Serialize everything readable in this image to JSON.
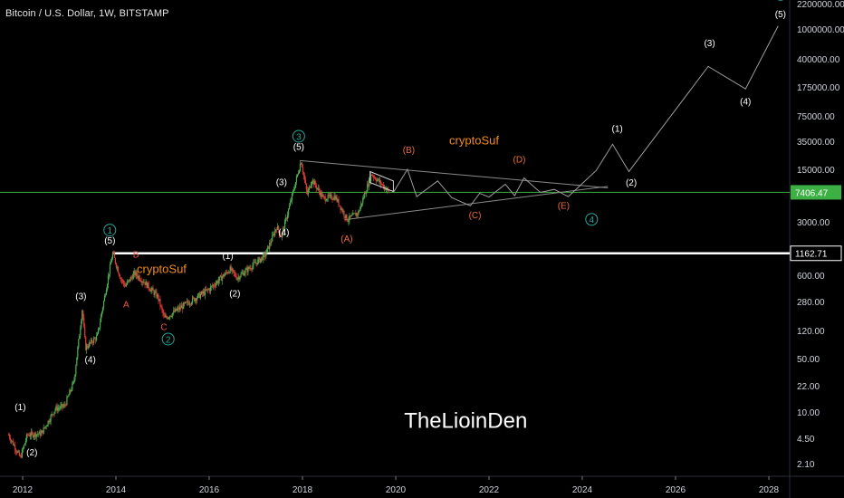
{
  "chart_data": {
    "type": "line",
    "title": "Bitcoin / U.S. Dollar, 1W, BITSTAMP",
    "scale": "log",
    "x_axis": {
      "ticks": [
        "2012",
        "2014",
        "2016",
        "2018",
        "2020",
        "2022",
        "2024",
        "2026",
        "2028"
      ]
    },
    "y_axis": {
      "position": "right",
      "ticks": [
        "2200000.00",
        "1000000.00",
        "400000.00",
        "175000.00",
        "75000.00",
        "35000.00",
        "15000.00",
        "3000.00",
        "600.00",
        "280.00",
        "120.00",
        "50.00",
        "22.00",
        "10.00",
        "4.50",
        "2.10"
      ]
    },
    "price_lines": [
      {
        "label": "7406.47",
        "value": 7406.47,
        "color": "#3cb043"
      },
      {
        "label": "1162.71",
        "value": 1162.71,
        "color": "#ffffff"
      }
    ],
    "price_series": [
      {
        "t": 2011.7,
        "p": 5
      },
      {
        "t": 2011.95,
        "p": 2.5
      },
      {
        "t": 2012.1,
        "p": 5
      },
      {
        "t": 2012.4,
        "p": 5.2
      },
      {
        "t": 2012.7,
        "p": 11
      },
      {
        "t": 2012.9,
        "p": 12
      },
      {
        "t": 2013.1,
        "p": 25
      },
      {
        "t": 2013.28,
        "p": 230
      },
      {
        "t": 2013.35,
        "p": 70
      },
      {
        "t": 2013.6,
        "p": 100
      },
      {
        "t": 2013.93,
        "p": 1162
      },
      {
        "t": 2014.1,
        "p": 550
      },
      {
        "t": 2014.2,
        "p": 440
      },
      {
        "t": 2014.4,
        "p": 640
      },
      {
        "t": 2014.6,
        "p": 500
      },
      {
        "t": 2014.9,
        "p": 320
      },
      {
        "t": 2015.04,
        "p": 170
      },
      {
        "t": 2015.5,
        "p": 260
      },
      {
        "t": 2016.0,
        "p": 400
      },
      {
        "t": 2016.45,
        "p": 720
      },
      {
        "t": 2016.6,
        "p": 560
      },
      {
        "t": 2016.9,
        "p": 780
      },
      {
        "t": 2017.2,
        "p": 1100
      },
      {
        "t": 2017.45,
        "p": 2600
      },
      {
        "t": 2017.55,
        "p": 1950
      },
      {
        "t": 2017.72,
        "p": 4800
      },
      {
        "t": 2017.97,
        "p": 19600
      },
      {
        "t": 2018.1,
        "p": 6900
      },
      {
        "t": 2018.2,
        "p": 11000
      },
      {
        "t": 2018.45,
        "p": 6200
      },
      {
        "t": 2018.7,
        "p": 6500
      },
      {
        "t": 2018.96,
        "p": 3200
      },
      {
        "t": 2019.2,
        "p": 4000
      },
      {
        "t": 2019.48,
        "p": 13000
      },
      {
        "t": 2019.7,
        "p": 9500
      },
      {
        "t": 2019.87,
        "p": 7400
      }
    ],
    "projection_path": [
      {
        "t": 2019.95,
        "p": 7400
      },
      {
        "t": 2020.25,
        "p": 15000
      },
      {
        "t": 2020.45,
        "p": 6500
      },
      {
        "t": 2020.9,
        "p": 10500
      },
      {
        "t": 2021.2,
        "p": 6300
      },
      {
        "t": 2021.6,
        "p": 4900
      },
      {
        "t": 2021.8,
        "p": 7200
      },
      {
        "t": 2022.0,
        "p": 6400
      },
      {
        "t": 2022.35,
        "p": 9500
      },
      {
        "t": 2022.55,
        "p": 6700
      },
      {
        "t": 2022.75,
        "p": 11500
      },
      {
        "t": 2023.1,
        "p": 7400
      },
      {
        "t": 2023.4,
        "p": 8100
      },
      {
        "t": 2023.7,
        "p": 6500
      },
      {
        "t": 2024.3,
        "p": 14500
      },
      {
        "t": 2024.65,
        "p": 32000
      },
      {
        "t": 2025.0,
        "p": 14000
      },
      {
        "t": 2026.7,
        "p": 320000
      },
      {
        "t": 2027.5,
        "p": 165000
      },
      {
        "t": 2028.2,
        "p": 1100000
      }
    ],
    "triangle": {
      "upper": [
        {
          "t": 2017.95,
          "p": 19500
        },
        {
          "t": 2024.55,
          "p": 8500
        }
      ],
      "lower": [
        {
          "t": 2018.9,
          "p": 3200
        },
        {
          "t": 2024.55,
          "p": 8900
        }
      ]
    },
    "annotations": [
      {
        "text": "(1)",
        "t": 2011.95,
        "p": 10.5,
        "color": "#ffffff",
        "circled": false
      },
      {
        "text": "(2)",
        "t": 2012.2,
        "p": 2.7,
        "color": "#ffffff",
        "circled": false
      },
      {
        "text": "(3)",
        "t": 2013.25,
        "p": 300,
        "color": "#ffffff",
        "circled": false
      },
      {
        "text": "(4)",
        "t": 2013.45,
        "p": 44,
        "color": "#ffffff",
        "circled": false
      },
      {
        "text": "1",
        "t": 2013.87,
        "p": 2100,
        "color": "#26a69a",
        "circled": true
      },
      {
        "text": "(5)",
        "t": 2013.87,
        "p": 1550,
        "color": "#ffffff",
        "circled": false
      },
      {
        "text": "B",
        "t": 2014.43,
        "p": 1020,
        "color": "#ef5350",
        "circled": false
      },
      {
        "text": "A",
        "t": 2014.22,
        "p": 235,
        "color": "#ef5350",
        "circled": false
      },
      {
        "text": "C",
        "t": 2015.03,
        "p": 122,
        "color": "#ef5350",
        "circled": false
      },
      {
        "text": "2",
        "t": 2015.12,
        "p": 82,
        "color": "#26a69a",
        "circled": true
      },
      {
        "text": "(1)",
        "t": 2016.4,
        "p": 975,
        "color": "#ffffff",
        "circled": false
      },
      {
        "text": "(2)",
        "t": 2016.55,
        "p": 325,
        "color": "#ffffff",
        "circled": false
      },
      {
        "text": "3",
        "t": 2017.92,
        "p": 36500,
        "color": "#26a69a",
        "circled": true
      },
      {
        "text": "(5)",
        "t": 2017.92,
        "p": 27000,
        "color": "#ffffff",
        "circled": false
      },
      {
        "text": "(3)",
        "t": 2017.55,
        "p": 9200,
        "color": "#ffffff",
        "circled": false
      },
      {
        "text": "(4)",
        "t": 2017.6,
        "p": 2000,
        "color": "#ffffff",
        "circled": false
      },
      {
        "text": "(A)",
        "t": 2018.95,
        "p": 1650,
        "color": "#ef6c3c",
        "circled": false
      },
      {
        "text": "(B)",
        "t": 2020.28,
        "p": 24500,
        "color": "#ef6c3c",
        "circled": false
      },
      {
        "text": "(C)",
        "t": 2021.7,
        "p": 3350,
        "color": "#ef6c3c",
        "circled": false
      },
      {
        "text": "(D)",
        "t": 2022.65,
        "p": 18400,
        "color": "#ef6c3c",
        "circled": false
      },
      {
        "text": "(E)",
        "t": 2023.6,
        "p": 4500,
        "color": "#ef6c3c",
        "circled": false
      },
      {
        "text": "4",
        "t": 2024.2,
        "p": 2900,
        "color": "#26a69a",
        "circled": true
      },
      {
        "text": "(1)",
        "t": 2024.75,
        "p": 46500,
        "color": "#ffffff",
        "circled": false
      },
      {
        "text": "(2)",
        "t": 2025.05,
        "p": 9100,
        "color": "#ffffff",
        "circled": false
      },
      {
        "text": "(3)",
        "t": 2026.73,
        "p": 590000,
        "color": "#ffffff",
        "circled": false
      },
      {
        "text": "(4)",
        "t": 2027.5,
        "p": 105000,
        "color": "#ffffff",
        "circled": false
      },
      {
        "text": "5",
        "t": 2028.25,
        "p": 2600000,
        "color": "#26a69a",
        "circled": true
      },
      {
        "text": "(5)",
        "t": 2028.25,
        "p": 1450000,
        "color": "#ffffff",
        "circled": false
      }
    ],
    "watermarks": [
      {
        "text": "cryptoSuf",
        "t": 2014.98,
        "p": 640,
        "color": "#ef8c1a"
      },
      {
        "text": "cryptoSuf",
        "t": 2021.68,
        "p": 32000,
        "color": "#ef8c1a"
      },
      {
        "text": "TheLioinDen",
        "t": 2021.5,
        "p": 6.2,
        "color": "#ffffff"
      }
    ],
    "colors": {
      "up": "#26a69a",
      "down": "#ef5350",
      "candle_up": "#4caf50",
      "candle_down": "#e53935",
      "projection": "#9e9e9e",
      "background": "#000000"
    }
  }
}
